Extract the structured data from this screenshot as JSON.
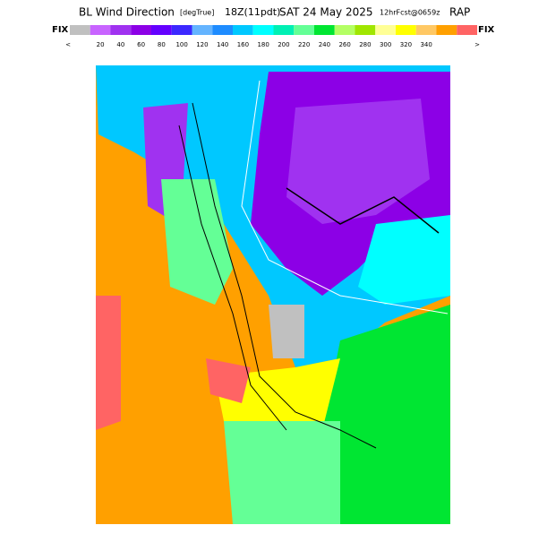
{
  "header": {
    "title": "BL Wind Direction",
    "units": "[degTrue]",
    "time": "18Z(11pdt)",
    "date": "SAT 24 May 2025",
    "forecast": "12hrFcst@0659z",
    "model": "RAP"
  },
  "colorbar": {
    "left_label": "FIX",
    "right_label": "FIX",
    "low_marker": "<",
    "high_marker": ">",
    "colors": [
      "#c0c0c0",
      "#c864ff",
      "#a032f0",
      "#8c00e6",
      "#6400ff",
      "#3c28ff",
      "#64b4ff",
      "#1e8cff",
      "#00c8ff",
      "#00ffff",
      "#00f0b4",
      "#64ff96",
      "#00e632",
      "#b4ff64",
      "#a0e600",
      "#ffff96",
      "#ffff00",
      "#ffc864",
      "#ffa000",
      "#ff6464"
    ],
    "labels": [
      20,
      40,
      60,
      80,
      100,
      120,
      140,
      160,
      180,
      200,
      220,
      240,
      260,
      280,
      300,
      320,
      340
    ]
  }
}
